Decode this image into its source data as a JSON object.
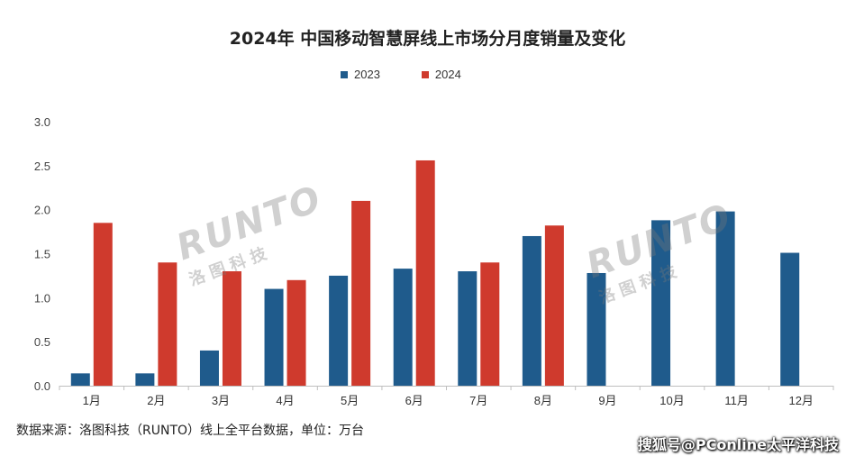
{
  "title": "2024年 中国移动智慧屏线上市场分月度销量及变化",
  "legend": [
    {
      "name": "2023",
      "color": "#1f5b8c"
    },
    {
      "name": "2024",
      "color": "#cf3a2d"
    }
  ],
  "watermark": {
    "brand": "RUNTO",
    "sub": "洛图科技"
  },
  "footer": {
    "source": "数据来源：洛图科技（RUNTO）线上全平台数据，单位：万台",
    "credit": "搜狐号@PConline太平洋科技"
  },
  "chart_data": {
    "type": "bar",
    "title": "2024年 中国移动智慧屏线上市场分月度销量及变化",
    "categories": [
      "1月",
      "2月",
      "3月",
      "4月",
      "5月",
      "6月",
      "7月",
      "8月",
      "9月",
      "10月",
      "11月",
      "12月"
    ],
    "series": [
      {
        "name": "2023",
        "color": "#1f5b8c",
        "values": [
          0.14,
          0.14,
          0.4,
          1.1,
          1.25,
          1.33,
          1.3,
          1.7,
          1.28,
          1.88,
          1.98,
          1.51
        ]
      },
      {
        "name": "2024",
        "color": "#cf3a2d",
        "values": [
          1.85,
          1.4,
          1.3,
          1.2,
          2.1,
          2.56,
          1.4,
          1.82,
          null,
          null,
          null,
          null
        ]
      }
    ],
    "ylim": [
      0,
      3.0
    ],
    "yticks": [
      "0.0",
      "0.5",
      "1.0",
      "1.5",
      "2.0",
      "2.5",
      "3.0"
    ],
    "grid": false,
    "legend_position": "top-center"
  }
}
